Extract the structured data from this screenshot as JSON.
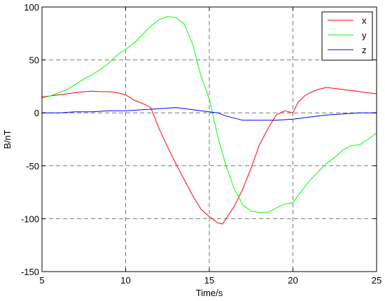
{
  "chart_data": {
    "type": "line",
    "xlabel": "Time/s",
    "ylabel": "B/nT",
    "xlim": [
      5,
      25
    ],
    "ylim": [
      -150,
      100
    ],
    "xticks": [
      5,
      10,
      15,
      20,
      25
    ],
    "yticks": [
      -150,
      -100,
      -50,
      0,
      50,
      100
    ],
    "grid": "dashed gridlines at x = 10, 15, 20 and y = -100, -50, 0, 50",
    "legend_position": "top-right",
    "series": [
      {
        "name": "x",
        "color": "#ff0000",
        "points": [
          [
            5,
            15
          ],
          [
            5.5,
            16
          ],
          [
            6,
            17
          ],
          [
            6.5,
            18
          ],
          [
            7,
            19
          ],
          [
            7.5,
            20
          ],
          [
            8,
            20.5
          ],
          [
            8.5,
            20
          ],
          [
            9,
            20
          ],
          [
            9.5,
            19
          ],
          [
            10,
            17
          ],
          [
            10.5,
            12
          ],
          [
            11,
            9
          ],
          [
            11.5,
            5
          ],
          [
            12,
            -15
          ],
          [
            12.5,
            -32
          ],
          [
            13,
            -48
          ],
          [
            13.5,
            -63
          ],
          [
            14,
            -78
          ],
          [
            14.5,
            -91
          ],
          [
            15,
            -98
          ],
          [
            15.5,
            -104
          ],
          [
            15.8,
            -105
          ],
          [
            16,
            -100
          ],
          [
            16.5,
            -88
          ],
          [
            17,
            -72
          ],
          [
            17.5,
            -52
          ],
          [
            18,
            -30
          ],
          [
            18.5,
            -15
          ],
          [
            19,
            -2
          ],
          [
            19.5,
            2
          ],
          [
            20,
            0
          ],
          [
            20.3,
            10
          ],
          [
            20.7,
            16
          ],
          [
            21,
            19
          ],
          [
            21.5,
            22
          ],
          [
            22,
            24
          ],
          [
            22.5,
            23
          ],
          [
            23,
            22
          ],
          [
            23.5,
            21
          ],
          [
            24,
            20
          ],
          [
            24.5,
            19
          ],
          [
            25,
            18
          ]
        ]
      },
      {
        "name": "y",
        "color": "#00ff00",
        "points": [
          [
            5,
            14
          ],
          [
            5.5,
            16
          ],
          [
            6,
            19
          ],
          [
            6.5,
            22
          ],
          [
            7,
            27
          ],
          [
            7.5,
            32
          ],
          [
            8,
            36
          ],
          [
            8.5,
            41
          ],
          [
            9,
            47
          ],
          [
            9.5,
            55
          ],
          [
            10,
            60
          ],
          [
            10.5,
            66
          ],
          [
            11,
            74
          ],
          [
            11.5,
            82
          ],
          [
            12,
            88
          ],
          [
            12.5,
            91
          ],
          [
            13,
            90
          ],
          [
            13.5,
            84
          ],
          [
            14,
            65
          ],
          [
            14.5,
            35
          ],
          [
            15,
            13
          ],
          [
            15.5,
            -22
          ],
          [
            16,
            -50
          ],
          [
            16.5,
            -72
          ],
          [
            17,
            -87
          ],
          [
            17.5,
            -93
          ],
          [
            18,
            -94
          ],
          [
            18.5,
            -94
          ],
          [
            19,
            -90
          ],
          [
            19.5,
            -86
          ],
          [
            20,
            -85
          ],
          [
            20.5,
            -74
          ],
          [
            21,
            -64
          ],
          [
            21.5,
            -56
          ],
          [
            22,
            -48
          ],
          [
            22.5,
            -42
          ],
          [
            23,
            -35
          ],
          [
            23.5,
            -31
          ],
          [
            24,
            -30
          ],
          [
            24.5,
            -25
          ],
          [
            25,
            -19
          ]
        ]
      },
      {
        "name": "z",
        "color": "#0000ff",
        "points": [
          [
            5,
            0
          ],
          [
            6,
            0
          ],
          [
            7,
            1
          ],
          [
            8,
            1
          ],
          [
            9,
            2
          ],
          [
            10,
            2
          ],
          [
            11,
            3
          ],
          [
            12,
            4
          ],
          [
            13,
            5
          ],
          [
            14,
            3
          ],
          [
            15,
            1
          ],
          [
            15.5,
            0
          ],
          [
            16,
            -3
          ],
          [
            17,
            -7
          ],
          [
            18,
            -7
          ],
          [
            19,
            -7
          ],
          [
            20,
            -6
          ],
          [
            21,
            -4
          ],
          [
            22,
            -2
          ],
          [
            23,
            -1
          ],
          [
            24,
            0
          ],
          [
            25,
            0
          ]
        ]
      }
    ]
  }
}
